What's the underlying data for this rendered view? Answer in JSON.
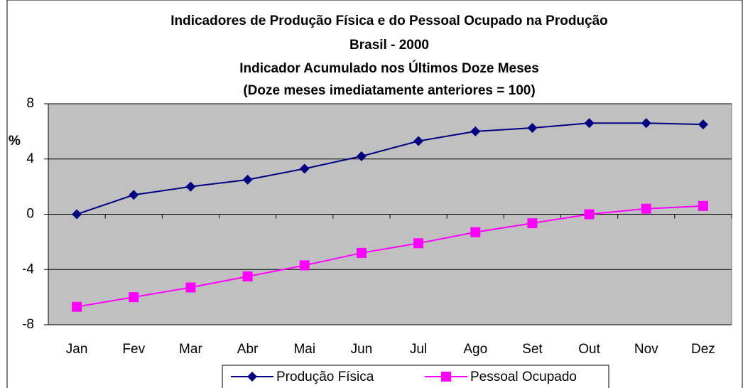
{
  "chart_data": {
    "type": "line",
    "title": "Indicadores de Produção Física e do Pessoal Ocupado na Produção",
    "subtitles": [
      "Brasil - 2000",
      "Indicador Acumulado nos Últimos Doze Meses",
      "(Doze meses imediatamente anteriores = 100)"
    ],
    "y_label": "%",
    "categories": [
      "Jan",
      "Fev",
      "Mar",
      "Abr",
      "Mai",
      "Jun",
      "Jul",
      "Ago",
      "Set",
      "Out",
      "Nov",
      "Dez"
    ],
    "series": [
      {
        "name": "Produção Física",
        "color": "#000080",
        "marker": "diamond",
        "values": [
          0,
          1.4,
          2.0,
          2.5,
          3.3,
          4.2,
          5.3,
          6.0,
          6.25,
          6.6,
          6.6,
          6.5
        ]
      },
      {
        "name": "Pessoal Ocupado",
        "color": "#FF00FF",
        "marker": "square",
        "values": [
          -6.7,
          -6.0,
          -5.3,
          -4.5,
          -3.7,
          -2.8,
          -2.1,
          -1.3,
          -0.65,
          0,
          0.4,
          0.6
        ]
      }
    ],
    "ylim": [
      -8,
      8
    ],
    "yticks": [
      -8,
      -4,
      0,
      4,
      8
    ],
    "grid": true,
    "legend": "bottom"
  }
}
